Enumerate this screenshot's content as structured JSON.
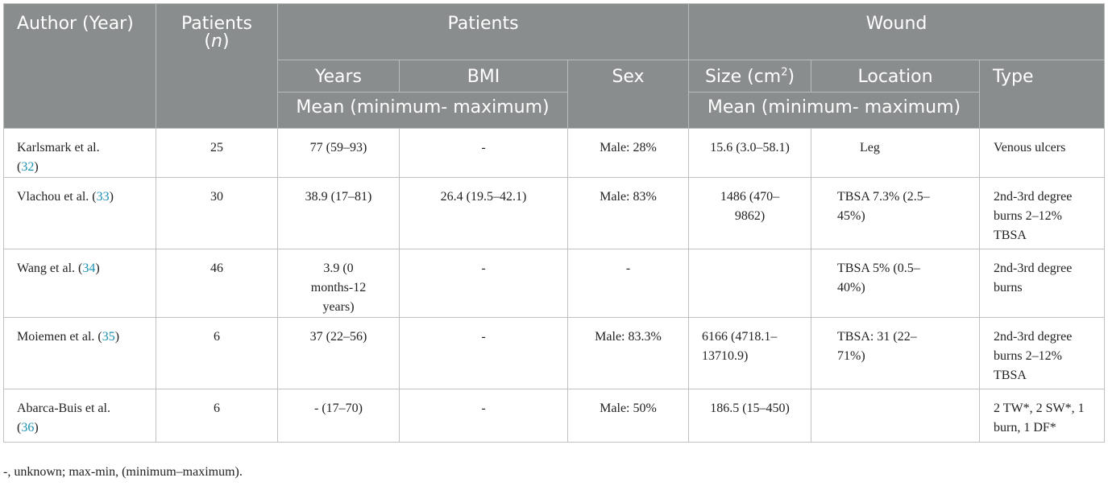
{
  "header": {
    "author_year": "Author (Year)",
    "patients_n_label": "Patients",
    "patients_n_var": "n",
    "patients_group": "Patients",
    "wound_group": "Wound",
    "years": "Years",
    "bmi": "BMI",
    "sex": "Sex",
    "size_prefix": "Size (cm",
    "size_sup": "2",
    "size_suffix": ")",
    "location": "Location",
    "type": "Type",
    "mean_range_patients": "Mean (minimum- maximum)",
    "mean_range_wound": "Mean (minimum- maximum)"
  },
  "rows": [
    {
      "author": "Karlsmark et al.",
      "ref": "32",
      "n": "25",
      "years": "77 (59–93)",
      "bmi": "-",
      "sex": "Male: 28%",
      "size": "15.6 (3.0–58.1)",
      "location": "Leg",
      "type": "Venous ulcers"
    },
    {
      "author": "Vlachou et al.",
      "ref": "33",
      "n": "30",
      "years": "38.9 (17–81)",
      "bmi": "26.4 (19.5–42.1)",
      "sex": "Male: 83%",
      "size": "1486 (470–9862)",
      "location": "TBSA 7.3% (2.5–45%)",
      "type": "2nd-3rd degree burns 2–12% TBSA"
    },
    {
      "author": "Wang et al.",
      "ref": "34",
      "n": "46",
      "years": "3.9 (0 months-12 years)",
      "bmi": "-",
      "sex": "-",
      "size": "",
      "location": "TBSA 5% (0.5–40%)",
      "type": "2nd-3rd degree burns"
    },
    {
      "author": "Moiemen et al.",
      "ref": "35",
      "n": "6",
      "years": "37 (22–56)",
      "bmi": "-",
      "sex": "Male: 83.3%",
      "size": "6166 (4718.1–13710.9)",
      "location": "TBSA: 31 (22–71%)",
      "type": "2nd-3rd degree burns 2–12% TBSA"
    },
    {
      "author": "Abarca-Buis et al.",
      "ref": "36",
      "n": "6",
      "years": "- (17–70)",
      "bmi": "-",
      "sex": "Male: 50%",
      "size": "186.5 (15–450)",
      "location": "",
      "type": "2 TW*, 2 SW*, 1 burn, 1 DF*"
    }
  ],
  "footnote": "-, unknown; max-min, (minimum–maximum)."
}
